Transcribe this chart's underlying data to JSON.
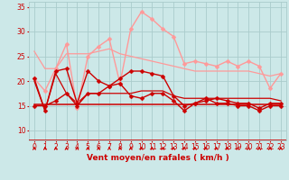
{
  "xlabel": "Vent moyen/en rafales ( km/h )",
  "xlim": [
    -0.5,
    23.5
  ],
  "ylim": [
    8,
    36
  ],
  "yticks": [
    10,
    15,
    20,
    25,
    30,
    35
  ],
  "xticks": [
    0,
    1,
    2,
    3,
    4,
    5,
    6,
    7,
    8,
    9,
    10,
    11,
    12,
    13,
    14,
    15,
    16,
    17,
    18,
    19,
    20,
    21,
    22,
    23
  ],
  "background_color": "#cce8e8",
  "grid_color": "#aacccc",
  "series": [
    {
      "x": [
        0,
        1,
        2,
        3,
        4,
        5,
        6,
        7,
        8,
        9,
        10,
        11,
        12,
        13,
        14,
        15,
        16,
        17,
        18,
        19,
        20,
        21,
        22,
        23
      ],
      "y": [
        20.5,
        18.0,
        22.5,
        27.5,
        14.5,
        25.0,
        27.0,
        28.5,
        19.5,
        30.5,
        34.0,
        32.5,
        30.5,
        29.0,
        23.5,
        24.0,
        23.5,
        23.0,
        24.0,
        23.0,
        24.0,
        23.0,
        18.5,
        21.5
      ],
      "color": "#ff9999",
      "marker": "D",
      "markersize": 2.5,
      "linewidth": 1.0
    },
    {
      "x": [
        0,
        1,
        2,
        3,
        4,
        5,
        6,
        7,
        8,
        9,
        10,
        11,
        12,
        13,
        14,
        15,
        16,
        17,
        18,
        19,
        20,
        21,
        22,
        23
      ],
      "y": [
        26.0,
        22.5,
        22.5,
        25.5,
        25.5,
        25.5,
        26.0,
        26.5,
        25.5,
        25.0,
        24.5,
        24.0,
        23.5,
        23.0,
        22.5,
        22.0,
        22.0,
        22.0,
        22.0,
        22.0,
        22.0,
        21.5,
        21.0,
        21.5
      ],
      "color": "#ff9999",
      "marker": null,
      "linewidth": 0.9
    },
    {
      "x": [
        0,
        1,
        2,
        3,
        4,
        5,
        6,
        7,
        8,
        9,
        10,
        11,
        12,
        13,
        14,
        15,
        16,
        17,
        18,
        19,
        20,
        21,
        22,
        23
      ],
      "y": [
        20.0,
        14.0,
        21.5,
        17.5,
        15.5,
        17.5,
        17.5,
        17.5,
        17.5,
        17.5,
        18.0,
        18.0,
        18.0,
        17.0,
        16.5,
        16.5,
        16.5,
        16.5,
        16.5,
        16.5,
        16.5,
        16.5,
        16.5,
        16.0
      ],
      "color": "#cc0000",
      "marker": null,
      "linewidth": 0.9
    },
    {
      "x": [
        0,
        1,
        2,
        3,
        4,
        5,
        6,
        7,
        8,
        9,
        10,
        11,
        12,
        13,
        14,
        15,
        16,
        17,
        18,
        19,
        20,
        21,
        22,
        23
      ],
      "y": [
        15.2,
        15.2,
        15.2,
        15.2,
        15.2,
        15.2,
        15.2,
        15.2,
        15.2,
        15.2,
        15.2,
        15.2,
        15.2,
        15.2,
        15.2,
        15.2,
        15.2,
        15.2,
        15.2,
        15.2,
        15.2,
        15.2,
        15.2,
        15.2
      ],
      "color": "#cc0000",
      "marker": null,
      "linewidth": 1.1
    },
    {
      "x": [
        0,
        1,
        2,
        3,
        4,
        5,
        6,
        7,
        8,
        9,
        10,
        11,
        12,
        13,
        14,
        15,
        16,
        17,
        18,
        19,
        20,
        21,
        22,
        23
      ],
      "y": [
        20.5,
        14.0,
        22.0,
        22.5,
        15.5,
        22.0,
        20.0,
        19.0,
        20.5,
        22.0,
        22.0,
        21.5,
        21.0,
        17.0,
        15.0,
        15.5,
        16.5,
        15.5,
        15.5,
        15.0,
        15.0,
        14.0,
        15.0,
        15.0
      ],
      "color": "#cc0000",
      "marker": "D",
      "markersize": 2.5,
      "linewidth": 1.0
    },
    {
      "x": [
        0,
        1,
        2,
        3,
        4,
        5,
        6,
        7,
        8,
        9,
        10,
        11,
        12,
        13,
        14,
        15,
        16,
        17,
        18,
        19,
        20,
        21,
        22,
        23
      ],
      "y": [
        15.0,
        15.0,
        16.0,
        17.5,
        15.0,
        17.5,
        17.5,
        19.0,
        19.5,
        17.0,
        16.5,
        17.5,
        17.5,
        16.0,
        14.0,
        15.5,
        16.0,
        16.5,
        16.0,
        15.5,
        15.5,
        14.5,
        15.5,
        15.5
      ],
      "color": "#cc0000",
      "marker": "D",
      "markersize": 2.5,
      "linewidth": 1.0
    }
  ],
  "arrow_color": "#cc0000",
  "tick_label_color": "#cc0000",
  "xlabel_color": "#cc0000",
  "axis_label_fontsize": 6.5,
  "tick_fontsize": 5.5
}
